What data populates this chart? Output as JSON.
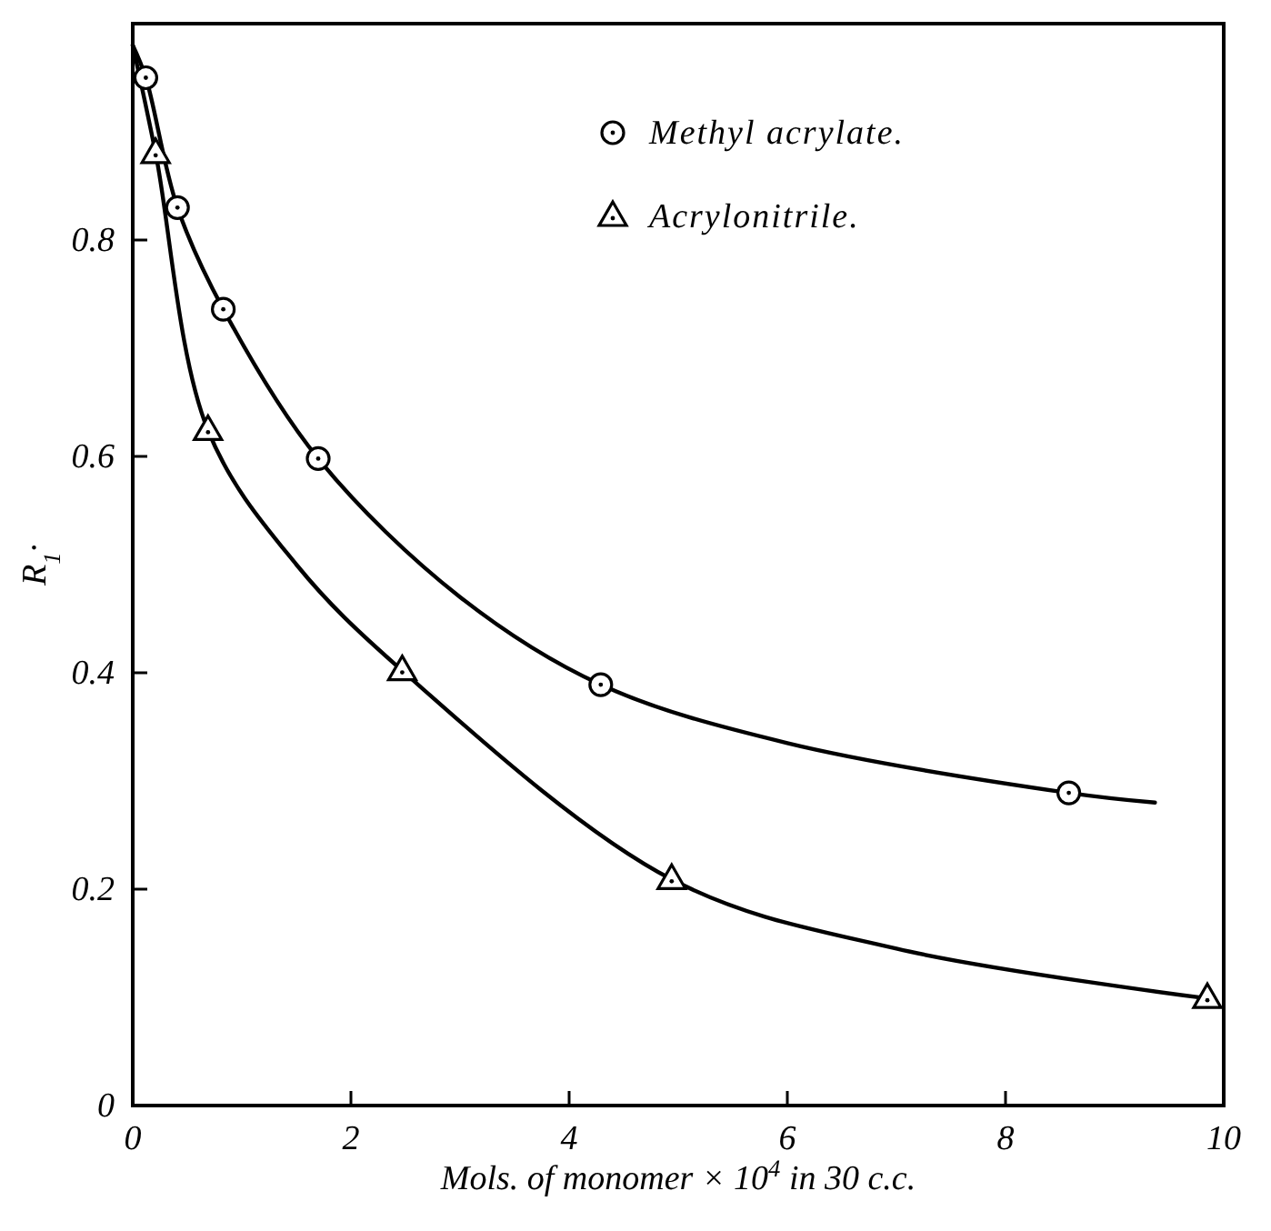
{
  "chart_data": {
    "type": "scatter",
    "xlabel": "Mols. of monomer × 10$^{4}$ in 30 c.c.",
    "ylabel": "R$_{1}$·",
    "xlim": [
      0,
      10
    ],
    "ylim": [
      0,
      1
    ],
    "xticks": [
      0,
      2,
      4,
      6,
      8,
      10
    ],
    "yticks": [
      0,
      0.2,
      0.4,
      0.6,
      0.8
    ],
    "legend": "top right",
    "series": [
      {
        "type": "line",
        "color": "#000000",
        "line_style": "solid",
        "marker": "none",
        "x": [
          0,
          0.12,
          0.41,
          0.83,
          1.7,
          3,
          4.29,
          6,
          8.58,
          9.37
        ],
        "values": [
          0.98,
          0.95,
          0.83,
          0.736,
          0.598,
          0.47,
          0.389,
          0.335,
          0.289,
          0.28
        ]
      },
      {
        "type": "line",
        "color": "#000000",
        "line_style": "solid",
        "marker": "none",
        "x": [
          0,
          0.21,
          0.69,
          1.5,
          2.47,
          4.94,
          7,
          9.85
        ],
        "values": [
          0.98,
          0.88,
          0.624,
          0.5,
          0.402,
          0.209,
          0.145,
          0.099
        ]
      },
      {
        "name": "Methyl acrylate.",
        "color": "#000000",
        "marker": "circle",
        "x": [
          0.12,
          0.41,
          0.83,
          1.7,
          4.29,
          8.58
        ],
        "values": [
          0.95,
          0.83,
          0.736,
          0.598,
          0.389,
          0.289
        ]
      },
      {
        "name": "Acrylonitrile.",
        "color": "#000000",
        "marker": "triangle",
        "x": [
          0.21,
          0.69,
          2.47,
          4.94,
          9.85
        ],
        "values": [
          0.88,
          0.624,
          0.402,
          0.209,
          0.099
        ]
      }
    ]
  }
}
